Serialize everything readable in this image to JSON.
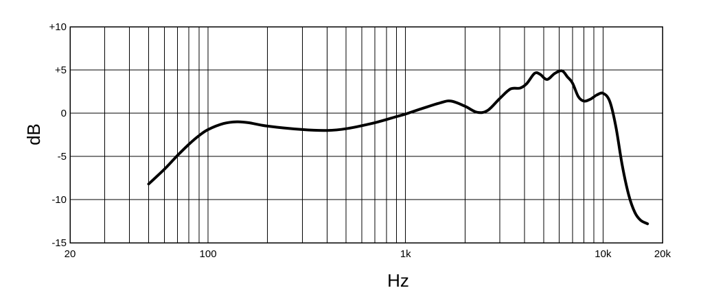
{
  "chart_data": {
    "type": "line",
    "title": "",
    "xlabel": "Hz",
    "ylabel": "dB",
    "x_scale": "log",
    "xlim": [
      20,
      20000
    ],
    "ylim": [
      -15,
      10
    ],
    "grid": true,
    "x_gridlines": [
      30,
      40,
      50,
      60,
      70,
      80,
      90,
      100,
      200,
      300,
      400,
      500,
      600,
      700,
      800,
      900,
      1000,
      2000,
      3000,
      4000,
      5000,
      6000,
      7000,
      8000,
      9000,
      10000
    ],
    "y_gridlines": [
      -10,
      -5,
      0,
      5
    ],
    "x_ticks": [
      {
        "value": 20,
        "label": "20"
      },
      {
        "value": 100,
        "label": "100"
      },
      {
        "value": 1000,
        "label": "1k"
      },
      {
        "value": 10000,
        "label": "10k"
      },
      {
        "value": 20000,
        "label": "20k"
      }
    ],
    "y_ticks": [
      {
        "value": 10,
        "label": "+10"
      },
      {
        "value": 5,
        "label": "+5"
      },
      {
        "value": 0,
        "label": "0"
      },
      {
        "value": -5,
        "label": "-5"
      },
      {
        "value": -10,
        "label": "-10"
      },
      {
        "value": -15,
        "label": "-15"
      }
    ],
    "series": [
      {
        "x": [
          50,
          60,
          70,
          80,
          90,
          100,
          120,
          140,
          160,
          200,
          300,
          400,
          500,
          700,
          900,
          1000,
          1200,
          1500,
          1700,
          2000,
          2300,
          2600,
          3000,
          3400,
          3800,
          4100,
          4500,
          4800,
          5200,
          5700,
          6200,
          6600,
          7000,
          7500,
          8000,
          8600,
          9300,
          10000,
          10800,
          11600,
          12500,
          13500,
          14500,
          15500,
          16800
        ],
        "y": [
          -8.2,
          -6.5,
          -4.9,
          -3.6,
          -2.6,
          -1.9,
          -1.2,
          -1.0,
          -1.1,
          -1.5,
          -1.9,
          -2.0,
          -1.8,
          -1.1,
          -0.4,
          -0.1,
          0.5,
          1.2,
          1.4,
          0.8,
          0.1,
          0.3,
          1.7,
          2.8,
          2.9,
          3.4,
          4.6,
          4.5,
          3.9,
          4.6,
          4.9,
          4.2,
          3.5,
          1.9,
          1.4,
          1.6,
          2.1,
          2.3,
          1.4,
          -1.5,
          -6.0,
          -9.5,
          -11.5,
          -12.4,
          -12.8
        ]
      }
    ]
  }
}
